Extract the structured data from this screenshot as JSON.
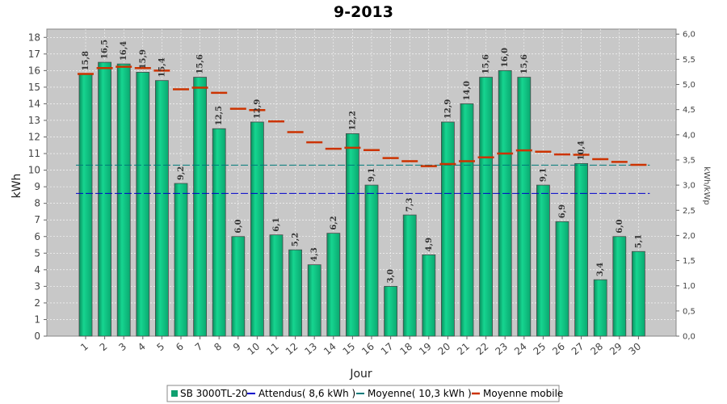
{
  "chart_data": {
    "type": "bar",
    "title": "9-2013",
    "xlabel": "Jour",
    "ylabel": "kWh",
    "y2label": "kWh/kWp",
    "ylim": [
      0,
      18.5
    ],
    "y2lim": [
      0,
      6.1
    ],
    "yticks": [
      "0",
      "1",
      "2",
      "3",
      "4",
      "5",
      "6",
      "7",
      "8",
      "9",
      "10",
      "11",
      "12",
      "13",
      "14",
      "15",
      "16",
      "17",
      "18"
    ],
    "y2ticks": [
      "0,0",
      "0,5",
      "1,0",
      "1,5",
      "2,0",
      "2,5",
      "3,0",
      "3,5",
      "4,0",
      "4,5",
      "5,0",
      "5,5",
      "6,0"
    ],
    "grid": true,
    "legend_position": "bottom",
    "categories": [
      "1",
      "2",
      "3",
      "4",
      "5",
      "6",
      "7",
      "8",
      "9",
      "10",
      "11",
      "12",
      "13",
      "14",
      "15",
      "16",
      "17",
      "18",
      "19",
      "20",
      "21",
      "22",
      "23",
      "24",
      "25",
      "26",
      "27",
      "28",
      "29",
      "30"
    ],
    "series": [
      {
        "name": "SB 3000TL-20",
        "kind": "bar",
        "color": "#10c080",
        "values": [
          15.8,
          16.5,
          16.4,
          15.9,
          15.4,
          9.2,
          15.6,
          12.5,
          6.0,
          12.9,
          6.1,
          5.2,
          4.3,
          6.2,
          12.2,
          9.1,
          3.0,
          7.3,
          4.9,
          12.9,
          14.0,
          15.6,
          16.0,
          15.6,
          9.1,
          6.9,
          10.4,
          3.4,
          6.0,
          5.1
        ],
        "labels": [
          "15,8",
          "16,5",
          "16,4",
          "15,9",
          "15,4",
          "9,2",
          "15,6",
          "12,5",
          "6,0",
          "12,9",
          "6,1",
          "5,2",
          "4,3",
          "6,2",
          "12,2",
          "9,1",
          "3,0",
          "7,3",
          "4,9",
          "12,9",
          "14,0",
          "15,6",
          "16,0",
          "15,6",
          "9,1",
          "6,9",
          "10,4",
          "3,4",
          "6,0",
          "5,1"
        ]
      },
      {
        "name": "Attendus( 8,6 kWh )",
        "kind": "hline",
        "color": "#0000cc",
        "value": 8.6
      },
      {
        "name": "Moyenne( 10,3 kWh )",
        "kind": "hline",
        "color": "#007a7a",
        "value": 10.3
      },
      {
        "name": "Moyenne mobile",
        "kind": "step",
        "color": "#cc3300",
        "values": [
          15.8,
          16.15,
          16.23,
          16.15,
          16.0,
          14.87,
          14.97,
          14.66,
          13.7,
          13.62,
          12.94,
          12.29,
          11.68,
          11.29,
          11.35,
          11.21,
          10.73,
          10.54,
          10.24,
          10.37,
          10.54,
          10.77,
          11.0,
          11.19,
          11.11,
          10.95,
          10.93,
          10.66,
          10.5,
          10.32
        ]
      }
    ]
  }
}
